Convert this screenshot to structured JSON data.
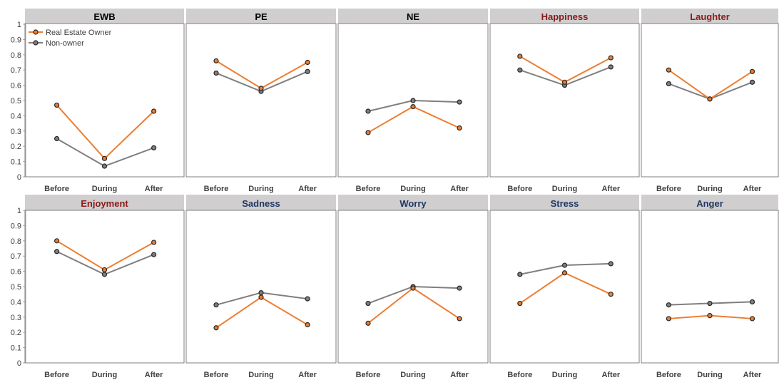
{
  "chart_data": {
    "type": "line",
    "categories": [
      "Before",
      "During",
      "After"
    ],
    "ylim": [
      0,
      1
    ],
    "yticks": [
      "0",
      "0.1",
      "0.2",
      "0.3",
      "0.4",
      "0.5",
      "0.6",
      "0.7",
      "0.8",
      "0.9",
      "1"
    ],
    "legend": {
      "placement": "top-left of first panel",
      "entries": [
        {
          "name": "Real Estate Owner",
          "color": "#ED7D31"
        },
        {
          "name": "Non-owner",
          "color": "#7F7F7F"
        }
      ]
    },
    "colors": {
      "owner": "#ED7D31",
      "nonowner": "#7F7F7F",
      "panel_header": "#D0CECE",
      "title_default": "#000000",
      "title_positive": "#8B1A1A",
      "title_negative": "#1F3864"
    },
    "panels": [
      {
        "title": "EWB",
        "title_color": "#000000",
        "series": [
          {
            "name": "Real Estate Owner",
            "values": [
              0.47,
              0.12,
              0.43
            ]
          },
          {
            "name": "Non-owner",
            "values": [
              0.25,
              0.07,
              0.19
            ]
          }
        ]
      },
      {
        "title": "PE",
        "title_color": "#000000",
        "series": [
          {
            "name": "Real Estate Owner",
            "values": [
              0.76,
              0.58,
              0.75
            ]
          },
          {
            "name": "Non-owner",
            "values": [
              0.68,
              0.56,
              0.69
            ]
          }
        ]
      },
      {
        "title": "NE",
        "title_color": "#000000",
        "series": [
          {
            "name": "Real Estate Owner",
            "values": [
              0.29,
              0.46,
              0.32
            ]
          },
          {
            "name": "Non-owner",
            "values": [
              0.43,
              0.5,
              0.49
            ]
          }
        ]
      },
      {
        "title": "Happiness",
        "title_color": "#8B1A1A",
        "series": [
          {
            "name": "Real Estate Owner",
            "values": [
              0.79,
              0.62,
              0.78
            ]
          },
          {
            "name": "Non-owner",
            "values": [
              0.7,
              0.6,
              0.72
            ]
          }
        ]
      },
      {
        "title": "Laughter",
        "title_color": "#8B1A1A",
        "series": [
          {
            "name": "Real Estate Owner",
            "values": [
              0.7,
              0.51,
              0.69
            ]
          },
          {
            "name": "Non-owner",
            "values": [
              0.61,
              0.51,
              0.62
            ]
          }
        ]
      },
      {
        "title": "Enjoyment",
        "title_color": "#8B1A1A",
        "series": [
          {
            "name": "Real Estate Owner",
            "values": [
              0.8,
              0.61,
              0.79
            ]
          },
          {
            "name": "Non-owner",
            "values": [
              0.73,
              0.58,
              0.71
            ]
          }
        ]
      },
      {
        "title": "Sadness",
        "title_color": "#1F3864",
        "series": [
          {
            "name": "Real Estate Owner",
            "values": [
              0.23,
              0.43,
              0.25
            ]
          },
          {
            "name": "Non-owner",
            "values": [
              0.38,
              0.46,
              0.42
            ]
          }
        ]
      },
      {
        "title": "Worry",
        "title_color": "#1F3864",
        "series": [
          {
            "name": "Real Estate Owner",
            "values": [
              0.26,
              0.49,
              0.29
            ]
          },
          {
            "name": "Non-owner",
            "values": [
              0.39,
              0.5,
              0.49
            ]
          }
        ]
      },
      {
        "title": "Stress",
        "title_color": "#1F3864",
        "series": [
          {
            "name": "Real Estate Owner",
            "values": [
              0.39,
              0.59,
              0.45
            ]
          },
          {
            "name": "Non-owner",
            "values": [
              0.58,
              0.64,
              0.65
            ]
          }
        ]
      },
      {
        "title": "Anger",
        "title_color": "#1F3864",
        "series": [
          {
            "name": "Real Estate Owner",
            "values": [
              0.29,
              0.31,
              0.29
            ]
          },
          {
            "name": "Non-owner",
            "values": [
              0.38,
              0.39,
              0.4
            ]
          }
        ]
      }
    ]
  }
}
